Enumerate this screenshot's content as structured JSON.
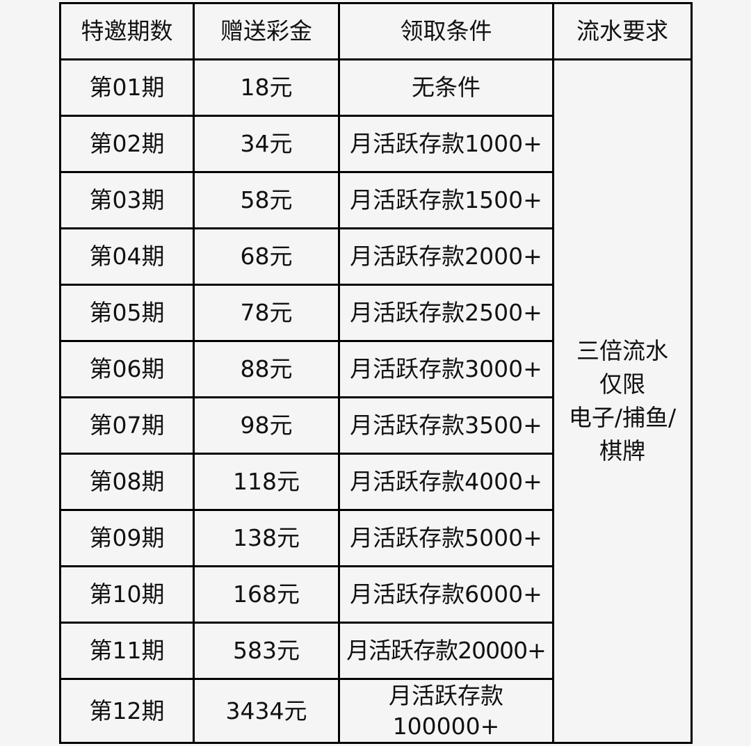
{
  "headers": [
    "特邀期数",
    "赠送彩金",
    "领取条件",
    "流水要求"
  ],
  "rows": [
    {
      "period": "第01期",
      "bonus": "18元",
      "condition": "无条件"
    },
    {
      "period": "第02期",
      "bonus": "34元",
      "condition": "月活跃存款1000+"
    },
    {
      "period": "第03期",
      "bonus": "58元",
      "condition": "月活跃存款1500+"
    },
    {
      "period": "第04期",
      "bonus": "68元",
      "condition": "月活跃存款2000+"
    },
    {
      "period": "第05期",
      "bonus": "78元",
      "condition": "月活跃存款2500+"
    },
    {
      "period": "第06期",
      "bonus": "88元",
      "condition": "月活跃存款3000+"
    },
    {
      "period": "第07期",
      "bonus": "98元",
      "condition": "月活跃存款3500+"
    },
    {
      "period": "第08期",
      "bonus": "118元",
      "condition": "月活跃存款4000+"
    },
    {
      "period": "第09期",
      "bonus": "138元",
      "condition": "月活跃存款5000+"
    },
    {
      "period": "第10期",
      "bonus": "168元",
      "condition": "月活跃存款6000+"
    },
    {
      "period": "第11期",
      "bonus": "583元",
      "condition": "月活跃存款20000+"
    },
    {
      "period": "第12期",
      "bonus": "3434元",
      "condition_lines": [
        "月活跃存款",
        "100000+"
      ]
    }
  ],
  "wagering_lines": [
    "三倍流水",
    "仅限",
    "电子/捕鱼/",
    "棋牌"
  ]
}
